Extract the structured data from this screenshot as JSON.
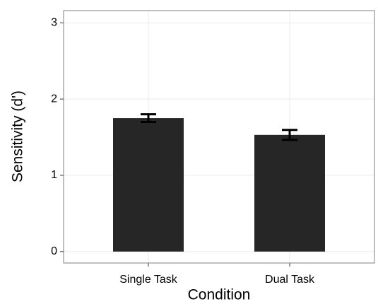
{
  "chart_data": {
    "type": "bar",
    "xlabel": "Condition",
    "ylabel": "Sensitivity (d')",
    "categories": [
      "Single Task",
      "Dual Task"
    ],
    "values": [
      1.75,
      1.53
    ],
    "errors": [
      0.05,
      0.065
    ],
    "color": "#262626",
    "ylim": [
      -0.15,
      3.16
    ],
    "yticks": [
      0,
      1,
      2,
      3
    ],
    "grid": true
  }
}
